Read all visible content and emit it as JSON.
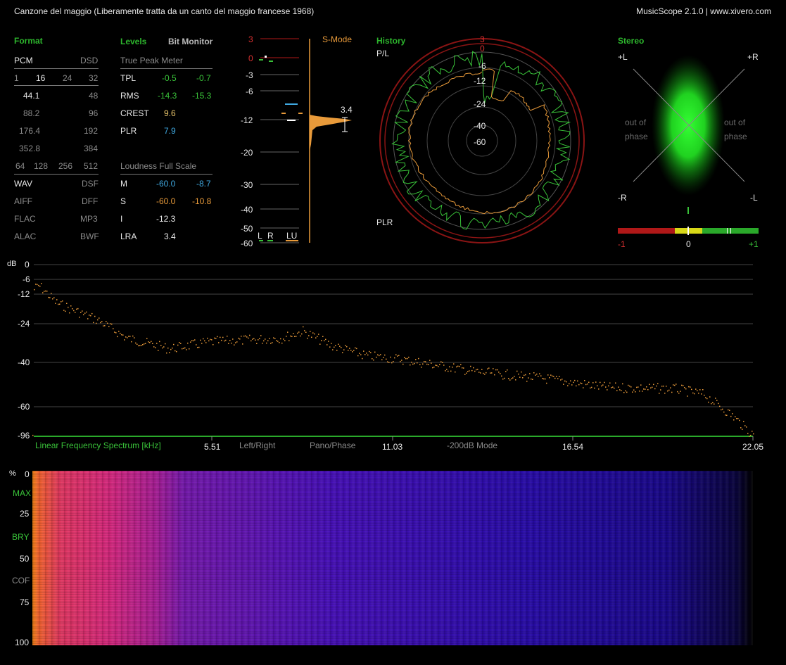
{
  "title": {
    "track": "Canzone del maggio (Liberamente tratta da un canto del maggio francese 1968)",
    "app": "MusicScope 2.1.0 | www.xivero.com"
  },
  "format": {
    "header": "Format",
    "pcm": "PCM",
    "dsd": "DSD",
    "bitdepth": [
      "1",
      "16",
      "24",
      "32"
    ],
    "rates": [
      [
        "44.1",
        "48"
      ],
      [
        "88.2",
        "96"
      ],
      [
        "176.4",
        "192"
      ],
      [
        "352.8",
        "384"
      ]
    ],
    "dsd_rates": [
      "64",
      "128",
      "256",
      "512"
    ],
    "files": [
      [
        "WAV",
        "DSF"
      ],
      [
        "AIFF",
        "DFF"
      ],
      [
        "FLAC",
        "MP3"
      ],
      [
        "ALAC",
        "BWF"
      ]
    ]
  },
  "levels": {
    "tab_levels": "Levels",
    "tab_bitmonitor": "Bit Monitor",
    "tpm_header": "True Peak Meter",
    "rows": [
      {
        "label": "TPL",
        "l": "-0.5",
        "r": "-0.7"
      },
      {
        "label": "RMS",
        "l": "-14.3",
        "r": "-15.3"
      },
      {
        "label": "CREST",
        "l": "9.6",
        "r": ""
      },
      {
        "label": "PLR",
        "l": "7.9",
        "r": ""
      }
    ],
    "lfs_header": "Loudness Full Scale",
    "loud_rows": [
      {
        "label": "M",
        "l": "-60.0",
        "r": "-8.7"
      },
      {
        "label": "S",
        "l": "-60.0",
        "r": "-10.8"
      },
      {
        "label": "I",
        "l": "-12.3",
        "r": ""
      },
      {
        "label": "LRA",
        "l": "3.4",
        "r": ""
      }
    ]
  },
  "meter": {
    "scale": [
      "3",
      "0",
      "-3",
      "-6",
      "-12",
      "-20",
      "-30",
      "-40",
      "-50",
      "-60"
    ],
    "mode": "S-Mode",
    "lra_value": "3.4",
    "channels": [
      "L",
      "R",
      "LU"
    ]
  },
  "history": {
    "header": "History",
    "pl": "P/L",
    "plr": "PLR",
    "rings": [
      "3",
      "0",
      "-6",
      "-12",
      "-24",
      "-40",
      "-60"
    ]
  },
  "stereo": {
    "header": "Stereo",
    "pl": "+L",
    "pr": "+R",
    "ml": "-R",
    "mr": "-L",
    "oop": "out of\nphase",
    "scale": [
      "-1",
      "0",
      "+1"
    ],
    "correlation": 0.5
  },
  "spectrum": {
    "db_label": "dB",
    "y_ticks": [
      "0",
      "-6",
      "-12",
      "-24",
      "-40",
      "-60",
      "-96"
    ],
    "x_ticks": [
      "5.51",
      "11.03",
      "16.54",
      "22.05"
    ],
    "x_title": "Linear Frequency Spectrum [kHz]",
    "modes": [
      "Left/Right",
      "Pano/Phase",
      "-200dB Mode"
    ]
  },
  "spectrogram": {
    "pct": "%",
    "labels": [
      "0",
      "MAX",
      "25",
      "BRY",
      "50",
      "COF",
      "75",
      "100"
    ]
  },
  "colors": {
    "green": "#39c239",
    "orange": "#e89a3a",
    "red": "#b01818",
    "blue": "#3fa8e0"
  }
}
